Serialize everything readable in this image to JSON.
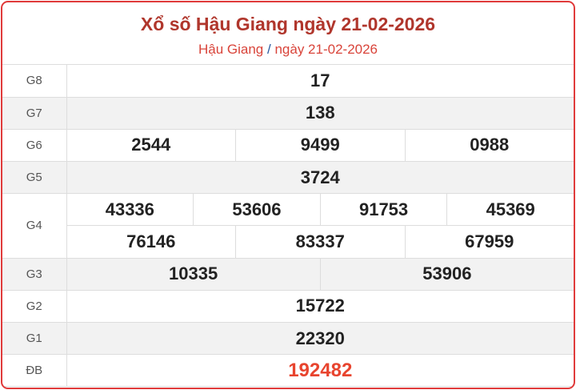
{
  "header": {
    "title": "Xổ số Hậu Giang ngày 21-02-2026",
    "breadcrumb": {
      "province": "Hậu Giang",
      "separator": "/",
      "date": "ngày 21-02-2026"
    }
  },
  "prizes": [
    {
      "label": "G8",
      "numbers": [
        "17"
      ]
    },
    {
      "label": "G7",
      "numbers": [
        "138"
      ]
    },
    {
      "label": "G6",
      "numbers": [
        "2544",
        "9499",
        "0988"
      ]
    },
    {
      "label": "G5",
      "numbers": [
        "3724"
      ]
    },
    {
      "label": "G4",
      "numbers": [
        "43336",
        "53606",
        "91753",
        "45369",
        "76146",
        "83337",
        "67959"
      ]
    },
    {
      "label": "G3",
      "numbers": [
        "10335",
        "53906"
      ]
    },
    {
      "label": "G2",
      "numbers": [
        "15722"
      ]
    },
    {
      "label": "G1",
      "numbers": [
        "22320"
      ]
    },
    {
      "label": "ĐB",
      "numbers": [
        "192482"
      ]
    }
  ],
  "colors": {
    "border": "#e03a3a",
    "title": "#b0362c",
    "special": "#e8442e"
  }
}
